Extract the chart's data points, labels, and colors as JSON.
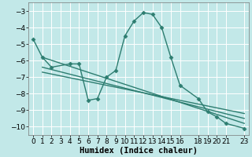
{
  "xlabel": "Humidex (Indice chaleur)",
  "background_color": "#c2e8e8",
  "grid_color": "#ffffff",
  "line_color": "#2d7d70",
  "series_main": {
    "x": [
      0,
      1,
      2,
      4,
      5,
      6,
      7,
      8,
      9,
      10,
      11,
      12,
      13,
      14,
      15,
      16,
      18,
      19,
      20,
      21,
      23
    ],
    "y": [
      -4.7,
      -5.8,
      -6.4,
      -6.2,
      -6.2,
      -8.4,
      -8.3,
      -7.0,
      -6.6,
      -4.5,
      -3.6,
      -3.1,
      -3.2,
      -4.0,
      -5.8,
      -7.5,
      -8.3,
      -9.1,
      -9.4,
      -9.8,
      -10.1
    ]
  },
  "trend_lines": [
    {
      "x": [
        1,
        23
      ],
      "y": [
        -5.8,
        -9.8
      ]
    },
    {
      "x": [
        1,
        23
      ],
      "y": [
        -6.4,
        -9.5
      ]
    },
    {
      "x": [
        1,
        23
      ],
      "y": [
        -6.7,
        -9.2
      ]
    }
  ],
  "xlim": [
    -0.5,
    23.5
  ],
  "ylim": [
    -10.5,
    -2.5
  ],
  "yticks": [
    -10,
    -9,
    -8,
    -7,
    -6,
    -5,
    -4,
    -3
  ],
  "xticks": [
    0,
    1,
    2,
    3,
    4,
    5,
    6,
    7,
    8,
    9,
    10,
    11,
    12,
    13,
    14,
    15,
    16,
    18,
    19,
    20,
    21,
    23
  ],
  "tick_fontsize": 6.5,
  "label_fontsize": 7.5,
  "marker_size": 2.5,
  "linewidth": 1.0
}
